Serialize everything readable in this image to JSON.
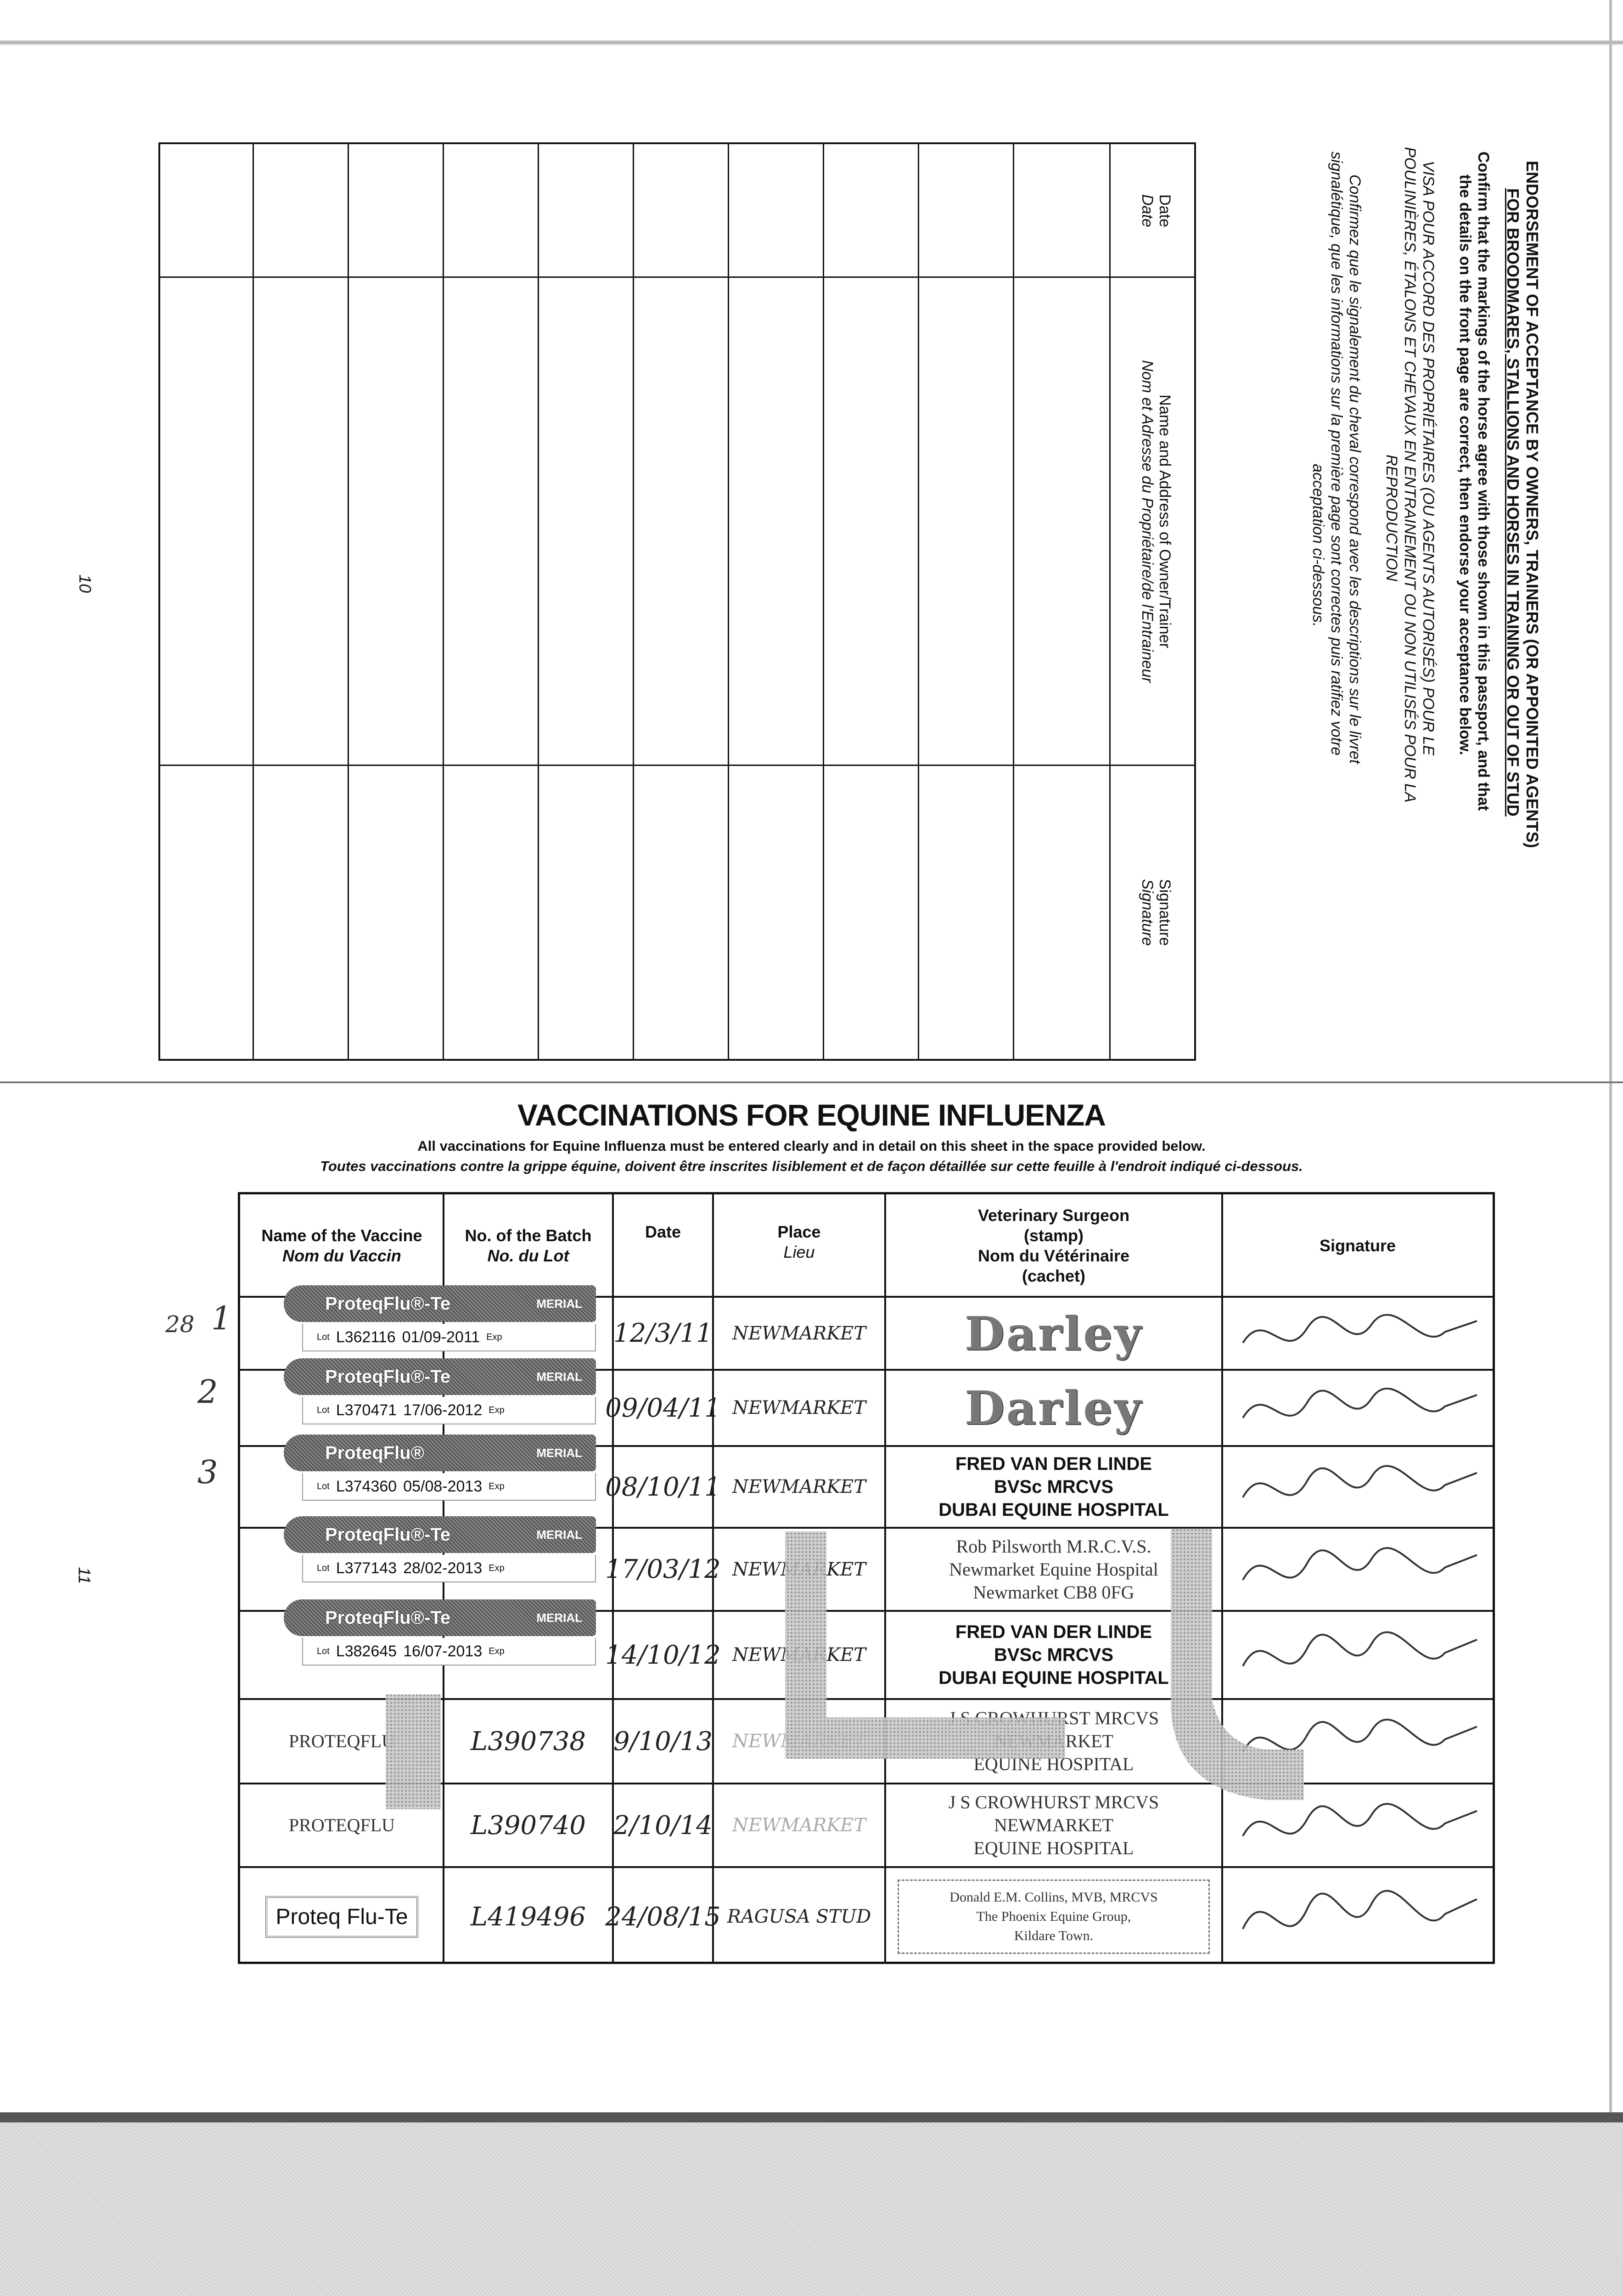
{
  "endorsement": {
    "title_line1": "ENDORSEMENT OF ACCEPTANCE BY OWNERS, TRAINERS (OR APPOINTED AGENTS)",
    "title_line2": "FOR BROODMARES, STALLIONS AND HORSES IN TRAINING OR OUT OF STUD",
    "en_text_1": "Confirm that the markings of the horse agree with those shown in this passport, and that",
    "en_text_2": "the details on the front page are correct, then endorse your acceptance below.",
    "fr_caps_1": "VISA POUR ACCORD DES PROPRIÉTAIRES (OU AGENTS AUTORISÉS) POUR LE",
    "fr_caps_2": "POULINIÈRES, ÉTALONS ET CHEVAUX EN ENTRAINEMENT OU NON UTILISÉS POUR LA",
    "fr_caps_3": "REPRODUCTION",
    "fr_it_1": "Confirmez que le signalement du cheval correspond avec les descriptions sur le livret",
    "fr_it_2": "signalétique, que les informations sur la première page sont correctes puis ratifiez votre",
    "fr_it_3": "acceptation ci-dessous.",
    "columns": [
      {
        "en": "Date",
        "fr": "Date"
      },
      {
        "en": "Name and Address of Owner/Trainer",
        "fr": "Nom et Adresse du Propriétaire/de l'Entraineur"
      },
      {
        "en": "Signature",
        "fr": "Signature"
      }
    ],
    "empty_rows": 10
  },
  "page_numbers": {
    "left": "10",
    "right": "11"
  },
  "vaccinations": {
    "title": "VACCINATIONS FOR EQUINE INFLUENZA",
    "subtitle_en": "All vaccinations for Equine Influenza must be entered clearly and in detail on this sheet in the space provided below.",
    "subtitle_fr": "Toutes vaccinations contre la grippe équine, doivent être inscrites lisiblement et de façon détaillée sur cette feuille à l'endroit indiqué ci-dessous.",
    "headers": [
      {
        "en": "Name of the Vaccine",
        "fr": "Nom du Vaccin"
      },
      {
        "en": "No. of the Batch",
        "fr": "No. du Lot"
      },
      {
        "en": "Date",
        "fr": ""
      },
      {
        "en": "Place",
        "fr": "Lieu"
      },
      {
        "en": "Veterinary Surgeon",
        "en2": "(stamp)",
        "fr": "Nom du Vétérinaire",
        "fr2": "(cachet)"
      },
      {
        "en": "Signature",
        "fr": ""
      }
    ],
    "margin_numbers": [
      "28",
      "1",
      "2",
      "3"
    ],
    "rows": [
      {
        "vaccine": "ProteqFlu®-Te",
        "maker": "MERIAL",
        "lot_prefix": "Lot",
        "lot": "L362116",
        "expiry": "01/09-2011",
        "exp_label": "Exp",
        "date": "12/3/11",
        "place": "NEWMARKET",
        "vet": [
          "Darley"
        ]
      },
      {
        "vaccine": "ProteqFlu®-Te",
        "maker": "MERIAL",
        "lot_prefix": "Lot",
        "lot": "L370471",
        "expiry": "17/06-2012",
        "exp_label": "Exp",
        "date": "09/04/11",
        "place": "NEWMARKET",
        "vet": [
          "Darley"
        ]
      },
      {
        "vaccine": "ProteqFlu®",
        "maker": "MERIAL",
        "lot_prefix": "Lot",
        "lot": "L374360",
        "expiry": "05/08-2013",
        "exp_label": "Exp",
        "date": "08/10/11",
        "place": "NEWMARKET",
        "vet": [
          "FRED VAN DER LINDE",
          "BVSc MRCVS",
          "DUBAI EQUINE HOSPITAL"
        ]
      },
      {
        "vaccine": "ProteqFlu®-Te",
        "maker": "MERIAL",
        "lot_prefix": "Lot",
        "lot": "L377143",
        "expiry": "28/02-2013",
        "exp_label": "Exp",
        "date": "17/03/12",
        "place": "NEWMARKET",
        "vet": [
          "Rob Pilsworth M.R.C.V.S.",
          "Newmarket Equine Hospital",
          "Newmarket CB8 0FG"
        ]
      },
      {
        "vaccine": "ProteqFlu®-Te",
        "maker": "MERIAL",
        "lot_prefix": "Lot",
        "lot": "L382645",
        "expiry": "16/07-2013",
        "exp_label": "Exp",
        "date": "14/10/12",
        "place": "NEWMARKET",
        "vet": [
          "FRED VAN DER LINDE",
          "BVSc MRCVS",
          "DUBAI EQUINE HOSPITAL"
        ]
      },
      {
        "vaccine": "PROTEQFLU",
        "lot": "L390738",
        "date": "9/10/13",
        "place": "NEWMARKET",
        "vet": [
          "J S CROWHURST MRCVS",
          "NEWMARKET",
          "EQUINE HOSPITAL"
        ]
      },
      {
        "vaccine": "PROTEQFLU",
        "lot": "L390740",
        "date": "2/10/14",
        "place": "NEWMARKET",
        "vet": [
          "J S CROWHURST MRCVS",
          "NEWMARKET",
          "EQUINE HOSPITAL"
        ]
      },
      {
        "vaccine": "Proteq Flu-Te",
        "lot": "L419496",
        "date": "24/08/15",
        "place": "RAGUSA STUD",
        "vet": [
          "Donald E.M. Collins, MVB, MRCVS",
          "The Phoenix Equine Group,",
          "Kildare Town."
        ]
      }
    ]
  },
  "colors": {
    "ink": "#111111",
    "stamp_gray": "#777777",
    "redaction_pattern": "#9a9a9a"
  }
}
